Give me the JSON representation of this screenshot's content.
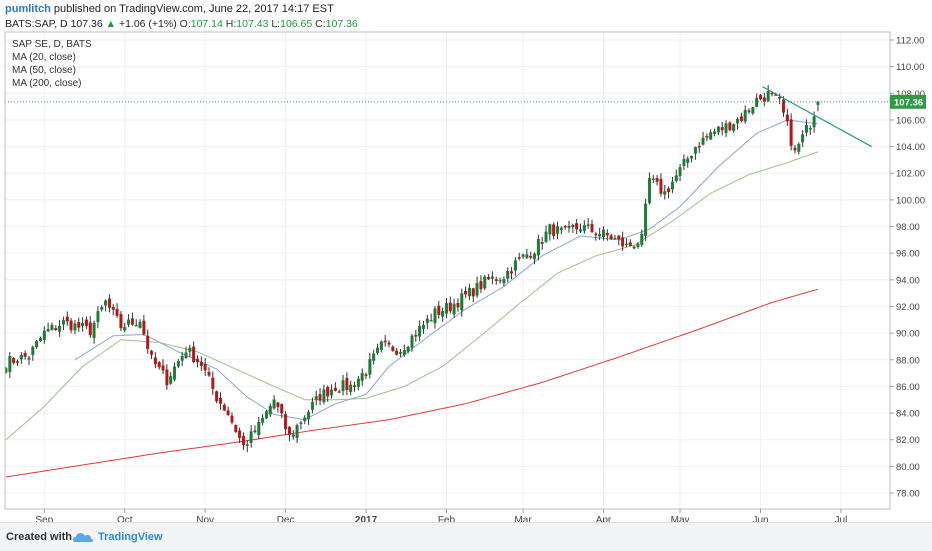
{
  "header": {
    "publisher": "pumlitch",
    "published_text": "published on TradingView.com, June 22, 2017 14:17 EST",
    "symbol": "BATS:SAP, D",
    "last": "107.36",
    "change_arrow": "▲",
    "change": "+1.06 (+1%)",
    "o_label": "O:",
    "o_value": "107.14",
    "h_label": "H:",
    "h_value": "107.43",
    "l_label": "L:",
    "l_value": "106.65",
    "c_label": "C:",
    "c_value": "107.36"
  },
  "footer": {
    "created_with": "Created with",
    "brand": "TradingView",
    "logo_icon": "tradingview-cloud-icon"
  },
  "colors": {
    "up": "#1f7a38",
    "down": "#b0191a",
    "ma20": "#8aa6c8",
    "ma50": "#9fbf8a",
    "ma200": "#e03a3a",
    "trendline": "#1f9a86",
    "price_line": "#2e9a46",
    "price_tag": "#2e9a46",
    "grid": "#eef0f2"
  },
  "chart_data": {
    "type": "candlestick",
    "title": "",
    "legend_placement": "top-left",
    "legend": [
      "SAP SE, D, BATS",
      "MA (20, close)",
      "MA (50, close)",
      "MA (200, close)"
    ],
    "x_tick_labels": [
      "Sep",
      "Oct",
      "Nov",
      "Dec",
      "2017",
      "Feb",
      "Mar",
      "Apr",
      "May",
      "Jun",
      "Jul"
    ],
    "x_tick_index": [
      10,
      31,
      52,
      73,
      94,
      115,
      135,
      156,
      176,
      197,
      218
    ],
    "ylim": [
      76.8,
      112.6
    ],
    "y_ticks": [
      "78.00",
      "80.00",
      "82.00",
      "84.00",
      "86.00",
      "88.00",
      "90.00",
      "92.00",
      "94.00",
      "96.00",
      "98.00",
      "100.00",
      "102.00",
      "104.00",
      "106.00",
      "108.00",
      "110.00",
      "112.00"
    ],
    "last_price": "107.36",
    "last_price_value": 107.36,
    "grid": true,
    "close_anchors": [
      [
        0,
        87.8
      ],
      [
        6,
        88.3
      ],
      [
        10,
        90.0
      ],
      [
        15,
        90.8
      ],
      [
        22,
        90.2
      ],
      [
        26,
        92.3
      ],
      [
        30,
        90.5
      ],
      [
        35,
        91.0
      ],
      [
        38,
        88.0
      ],
      [
        42,
        86.5
      ],
      [
        47,
        88.8
      ],
      [
        51,
        87.7
      ],
      [
        55,
        85.2
      ],
      [
        58,
        84.0
      ],
      [
        62,
        81.5
      ],
      [
        66,
        83.0
      ],
      [
        70,
        85.0
      ],
      [
        74,
        82.2
      ],
      [
        78,
        83.8
      ],
      [
        82,
        85.3
      ],
      [
        86,
        86.0
      ],
      [
        90,
        86.0
      ],
      [
        94,
        87.2
      ],
      [
        98,
        89.0
      ],
      [
        103,
        88.8
      ],
      [
        107,
        90.0
      ],
      [
        112,
        91.5
      ],
      [
        116,
        92.0
      ],
      [
        121,
        93.0
      ],
      [
        126,
        94.0
      ],
      [
        130,
        94.3
      ],
      [
        134,
        95.5
      ],
      [
        138,
        96.3
      ],
      [
        142,
        97.8
      ],
      [
        146,
        97.5
      ],
      [
        150,
        98.0
      ],
      [
        154,
        97.6
      ],
      [
        158,
        97.2
      ],
      [
        162,
        96.5
      ],
      [
        166,
        97.0
      ],
      [
        168,
        101.5
      ],
      [
        172,
        100.5
      ],
      [
        176,
        102.2
      ],
      [
        180,
        104.0
      ],
      [
        184,
        105.0
      ],
      [
        188,
        105.5
      ],
      [
        192,
        106.2
      ],
      [
        196,
        107.5
      ],
      [
        199,
        107.9
      ],
      [
        202,
        107.3
      ],
      [
        204,
        105.5
      ],
      [
        206,
        103.5
      ],
      [
        208,
        104.7
      ],
      [
        210,
        105.8
      ],
      [
        212,
        107.36
      ]
    ],
    "ma20_anchors": [
      [
        18,
        88.0
      ],
      [
        28,
        89.8
      ],
      [
        36,
        89.9
      ],
      [
        45,
        88.6
      ],
      [
        55,
        87.3
      ],
      [
        63,
        85.2
      ],
      [
        70,
        83.9
      ],
      [
        78,
        83.5
      ],
      [
        86,
        84.7
      ],
      [
        94,
        85.4
      ],
      [
        100,
        87.5
      ],
      [
        110,
        89.7
      ],
      [
        120,
        91.8
      ],
      [
        130,
        93.5
      ],
      [
        140,
        95.8
      ],
      [
        150,
        97.3
      ],
      [
        160,
        97.0
      ],
      [
        168,
        97.8
      ],
      [
        176,
        99.5
      ],
      [
        186,
        102.5
      ],
      [
        196,
        105.0
      ],
      [
        204,
        106.0
      ],
      [
        212,
        105.7
      ]
    ],
    "ma50_anchors": [
      [
        0,
        82.0
      ],
      [
        10,
        84.5
      ],
      [
        20,
        87.5
      ],
      [
        30,
        89.5
      ],
      [
        40,
        89.3
      ],
      [
        50,
        88.6
      ],
      [
        60,
        87.3
      ],
      [
        70,
        86.0
      ],
      [
        78,
        85.0
      ],
      [
        86,
        85.0
      ],
      [
        94,
        85.1
      ],
      [
        104,
        86.0
      ],
      [
        114,
        87.5
      ],
      [
        124,
        89.8
      ],
      [
        134,
        92.2
      ],
      [
        144,
        94.5
      ],
      [
        154,
        95.8
      ],
      [
        164,
        96.6
      ],
      [
        174,
        98.4
      ],
      [
        184,
        100.5
      ],
      [
        194,
        101.9
      ],
      [
        204,
        102.8
      ],
      [
        212,
        103.6
      ]
    ],
    "ma200_anchors": [
      [
        0,
        79.2
      ],
      [
        20,
        80.1
      ],
      [
        40,
        81.0
      ],
      [
        60,
        81.8
      ],
      [
        80,
        82.7
      ],
      [
        100,
        83.5
      ],
      [
        120,
        84.7
      ],
      [
        140,
        86.3
      ],
      [
        160,
        88.2
      ],
      [
        180,
        90.2
      ],
      [
        200,
        92.3
      ],
      [
        212,
        93.3
      ]
    ],
    "trendline": [
      [
        197.5,
        108.5
      ],
      [
        226,
        104.0
      ]
    ]
  }
}
